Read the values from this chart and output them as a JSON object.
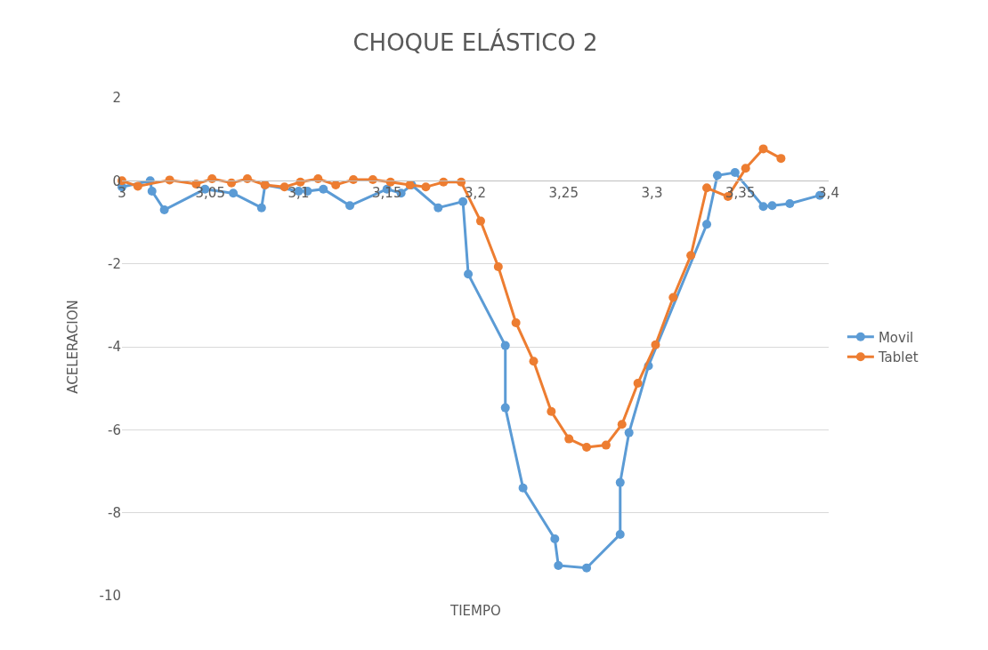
{
  "chart_data": {
    "type": "line",
    "title": "CHOQUE ELÁSTICO 2",
    "xlabel": "TIEMPO",
    "ylabel": "ACELERACION",
    "xlim": [
      3,
      3.4
    ],
    "xticks": [
      3,
      {
        "value": 3.05,
        "label": "3,05"
      },
      {
        "value": 3.1,
        "label": "3,1"
      },
      {
        "value": 3.15,
        "label": "3,15"
      },
      {
        "value": 3.2,
        "label": "3,2"
      },
      {
        "value": 3.25,
        "label": "3,25"
      },
      {
        "value": 3.3,
        "label": "3,3"
      },
      {
        "value": 3.35,
        "label": "3,35"
      },
      {
        "value": 3.4,
        "label": "3,4"
      }
    ],
    "ylim": [
      -10,
      2
    ],
    "yticks": [
      -10,
      -8,
      -6,
      -4,
      -2,
      0,
      2
    ],
    "grid": "y",
    "legend": "right",
    "marker": "circle",
    "line_style": "solid",
    "series": [
      {
        "name": "Movil",
        "color": "#5b9bd5",
        "x": [
          3.0,
          3.016,
          3.017,
          3.024,
          3.047,
          3.063,
          3.079,
          3.081,
          3.1,
          3.105,
          3.114,
          3.129,
          3.15,
          3.158,
          3.164,
          3.179,
          3.193,
          3.196,
          3.217,
          3.217,
          3.227,
          3.245,
          3.247,
          3.263,
          3.282,
          3.282,
          3.287,
          3.298,
          3.331,
          3.337,
          3.347,
          3.363,
          3.368,
          3.378,
          3.395
        ],
        "values": [
          -0.15,
          0.0,
          -0.25,
          -0.7,
          -0.2,
          -0.3,
          -0.65,
          -0.1,
          -0.25,
          -0.25,
          -0.2,
          -0.6,
          -0.2,
          -0.3,
          -0.1,
          -0.65,
          -0.5,
          -2.25,
          -3.97,
          -5.47,
          -7.4,
          -8.63,
          -9.27,
          -9.33,
          -8.52,
          -7.27,
          -6.07,
          -4.46,
          -1.05,
          0.13,
          0.2,
          -0.62,
          -0.6,
          -0.55,
          -0.35
        ]
      },
      {
        "name": "Tablet",
        "color": "#ed7d31",
        "x": [
          3.0,
          3.009,
          3.027,
          3.042,
          3.051,
          3.062,
          3.071,
          3.081,
          3.092,
          3.101,
          3.111,
          3.121,
          3.131,
          3.142,
          3.152,
          3.163,
          3.172,
          3.182,
          3.192,
          3.203,
          3.213,
          3.223,
          3.233,
          3.243,
          3.253,
          3.263,
          3.274,
          3.283,
          3.292,
          3.302,
          3.312,
          3.322,
          3.331,
          3.343,
          3.353,
          3.363,
          3.373
        ],
        "values": [
          0.0,
          -0.13,
          0.02,
          -0.08,
          0.05,
          -0.05,
          0.05,
          -0.1,
          -0.15,
          -0.03,
          0.05,
          -0.1,
          0.03,
          0.03,
          -0.03,
          -0.1,
          -0.15,
          -0.03,
          -0.03,
          -0.97,
          -2.07,
          -3.42,
          -4.35,
          -5.56,
          -6.22,
          -6.42,
          -6.37,
          -5.87,
          -4.88,
          -3.95,
          -2.81,
          -1.8,
          -0.17,
          -0.38,
          0.3,
          0.77,
          0.54
        ]
      }
    ]
  }
}
